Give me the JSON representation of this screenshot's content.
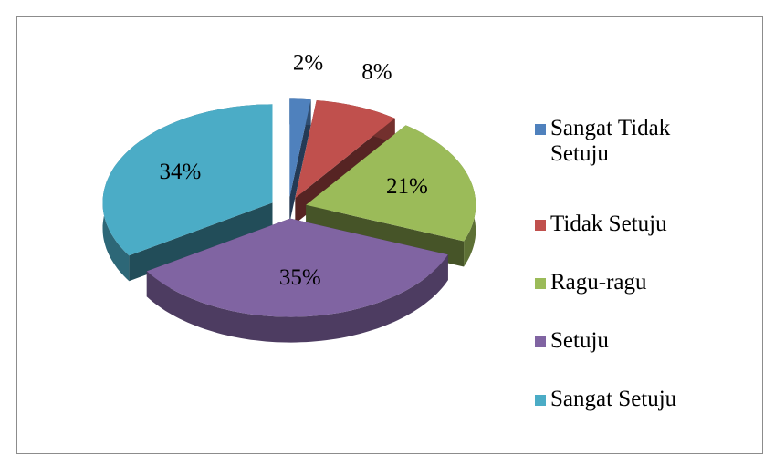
{
  "chart_data": {
    "type": "pie3d",
    "categories": [
      "Sangat Tidak Setuju",
      "Tidak Setuju",
      "Ragu-ragu",
      "Setuju",
      "Sangat Setuju"
    ],
    "values": [
      2,
      8,
      21,
      35,
      34
    ],
    "value_labels": [
      "2%",
      "8%",
      "21%",
      "35%",
      "34%"
    ],
    "colors": [
      "#4f81bd",
      "#c0504d",
      "#9bbb59",
      "#8064a2",
      "#4bacc6"
    ],
    "legend": "right"
  }
}
